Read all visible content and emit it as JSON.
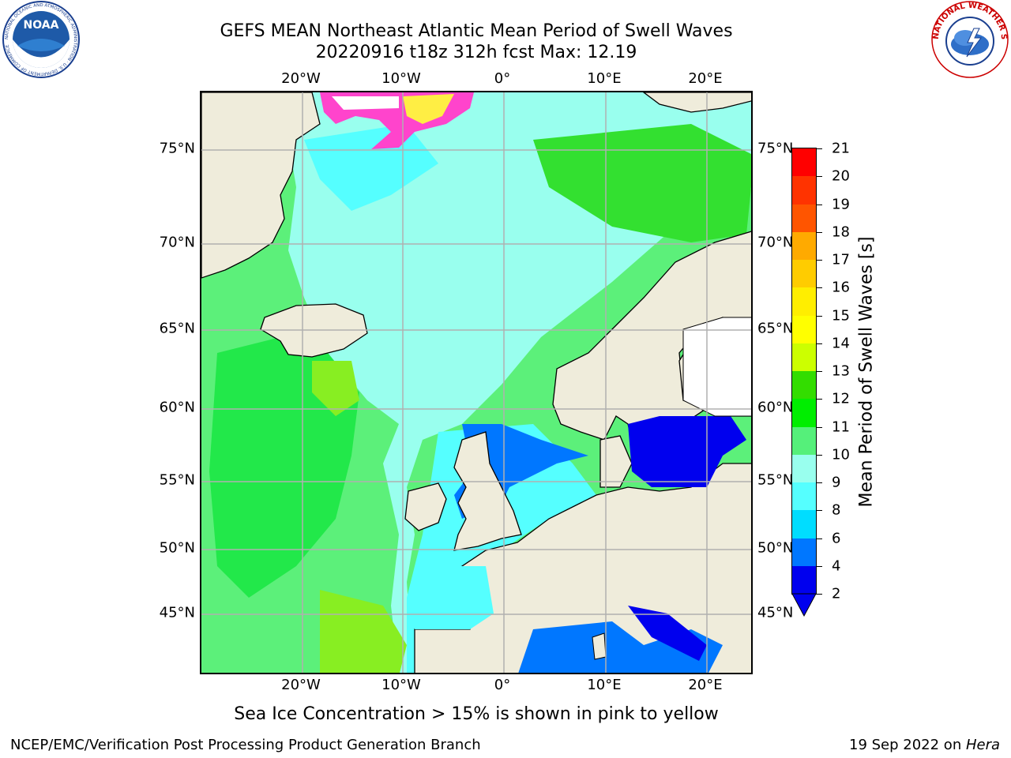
{
  "title": {
    "line1": "GEFS MEAN Northeast Atlantic Mean Period of Swell Waves",
    "line2": "20220916 t18z 312h fcst   Max: 12.19"
  },
  "map": {
    "longitude_ticks": [
      "20°W",
      "10°W",
      "0°",
      "10°E",
      "20°E"
    ],
    "latitude_ticks": [
      "75°N",
      "70°N",
      "65°N",
      "60°N",
      "55°N",
      "50°N",
      "45°N"
    ],
    "colors": {
      "land": "#efecdb",
      "missing": "#ffffff",
      "grid": "#b0b0b0",
      "sea_ice_low": "#ff44cc",
      "sea_ice_high": "#ffee44"
    }
  },
  "colorbar": {
    "label": "Mean Period of Swell Waves [s]",
    "ticks": [
      "21",
      "20",
      "19",
      "18",
      "17",
      "16",
      "15",
      "14",
      "13",
      "12",
      "11",
      "10",
      "9",
      "8",
      "6",
      "4",
      "2"
    ],
    "colors": [
      "#ff0000",
      "#ff3300",
      "#ff5500",
      "#ff8800",
      "#ffaa00",
      "#ffcc00",
      "#ffee00",
      "#ffff00",
      "#ccff00",
      "#99ff00",
      "#33dd00",
      "#00ee00",
      "#55f07a",
      "#99ffee",
      "#55ffff",
      "#00ffff",
      "#00ddff",
      "#0077ff",
      "#0000ee"
    ]
  },
  "subtitle": "Sea Ice Concentration > 15% is shown in pink to yellow",
  "footer": {
    "left": "NCEP/EMC/Verification Post Processing Product Generation Branch",
    "right_date": "19 Sep 2022 on ",
    "right_host": "Hera"
  },
  "logos": {
    "noaa_text": "NOAA",
    "noaa_ring": "NATIONAL OCEANIC AND ATMOSPHERIC ADMINISTRATION · U.S. DEPARTMENT OF COMMERCE",
    "nws_ring": "NATIONAL WEATHER SERVICE"
  }
}
